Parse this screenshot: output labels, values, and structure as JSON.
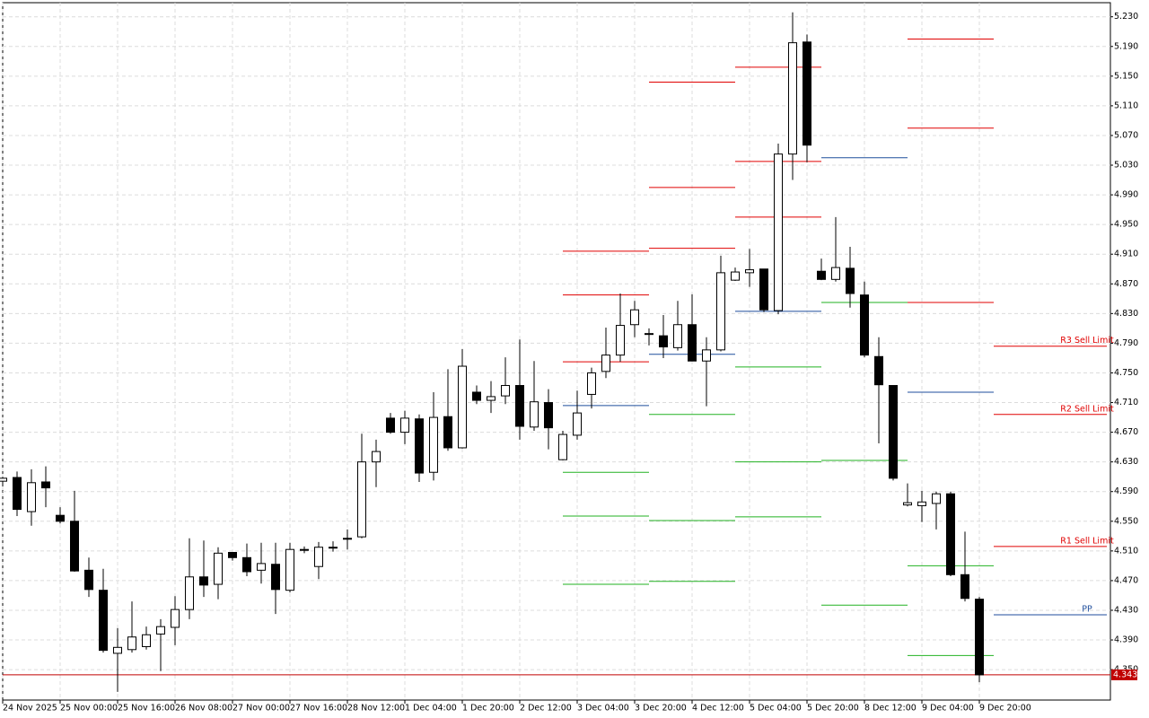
{
  "chart_data": {
    "type": "candlestick",
    "categories": [
      "24 Nov 2025",
      null,
      null,
      null,
      "25 Nov 00:00",
      null,
      null,
      null,
      "25 Nov 16:00",
      null,
      null,
      null,
      "26 Nov 08:00",
      null,
      null,
      null,
      "27 Nov 00:00",
      null,
      null,
      null,
      "27 Nov 16:00",
      null,
      null,
      null,
      "28 Nov 12:00",
      null,
      null,
      null,
      "1 Dec 04:00",
      null,
      null,
      null,
      "1 Dec 20:00",
      null,
      null,
      null,
      "2 Dec 12:00",
      null,
      null,
      null,
      "3 Dec 04:00",
      null,
      null,
      null,
      "3 Dec 20:00",
      null,
      null,
      null,
      "4 Dec 12:00",
      null,
      null,
      null,
      "5 Dec 04:00",
      null,
      null,
      null,
      "5 Dec 20:00",
      null,
      null,
      null,
      "8 Dec 12:00",
      null,
      null,
      null,
      "9 Dec 04:00",
      null,
      null,
      null,
      "9 Dec 20:00"
    ],
    "open": [
      4.604,
      4.609,
      4.563,
      4.603,
      4.558,
      4.55,
      4.484,
      4.457,
      4.372,
      4.377,
      4.381,
      4.398,
      4.407,
      4.431,
      4.475,
      4.465,
      4.508,
      4.501,
      4.484,
      4.492,
      4.457,
      4.511,
      4.489,
      4.514,
      4.526,
      4.529,
      4.63,
      4.689,
      4.67,
      4.688,
      4.616,
      4.691,
      4.649,
      4.724,
      4.713,
      4.719,
      4.733,
      4.677,
      4.71,
      4.633,
      4.666,
      4.721,
      4.752,
      4.774,
      4.815,
      4.802,
      4.8,
      4.784,
      4.815,
      4.766,
      4.781,
      4.875,
      4.885,
      4.89,
      4.834,
      5.045,
      5.196,
      4.887,
      4.876,
      4.891,
      4.855,
      4.772,
      4.733,
      4.572,
      4.571,
      4.574,
      4.587,
      4.478,
      4.445
    ],
    "high": [
      4.61,
      4.617,
      4.62,
      4.624,
      4.569,
      4.591,
      4.501,
      4.486,
      4.406,
      4.442,
      4.408,
      4.418,
      4.449,
      4.527,
      4.524,
      4.515,
      4.508,
      4.52,
      4.521,
      4.521,
      4.521,
      4.516,
      4.522,
      4.523,
      4.539,
      4.668,
      4.66,
      4.696,
      4.699,
      4.694,
      4.724,
      4.755,
      4.782,
      4.733,
      4.739,
      4.771,
      4.795,
      4.766,
      4.728,
      4.672,
      4.726,
      4.757,
      4.811,
      4.857,
      4.847,
      4.81,
      4.828,
      4.847,
      4.856,
      4.798,
      4.908,
      4.892,
      4.917,
      4.89,
      5.059,
      5.236,
      5.206,
      4.904,
      4.96,
      4.92,
      4.873,
      4.798,
      4.733,
      4.601,
      4.591,
      4.59,
      4.59,
      4.536,
      4.448
    ],
    "low": [
      4.6,
      4.557,
      4.544,
      4.569,
      4.547,
      4.482,
      4.448,
      4.373,
      4.32,
      4.373,
      4.377,
      4.348,
      4.383,
      4.418,
      4.448,
      4.445,
      4.497,
      4.476,
      4.466,
      4.425,
      4.454,
      4.507,
      4.472,
      4.509,
      4.512,
      4.527,
      4.596,
      4.668,
      4.654,
      4.603,
      4.605,
      4.645,
      4.648,
      4.708,
      4.696,
      4.708,
      4.66,
      4.672,
      4.647,
      4.632,
      4.66,
      4.702,
      4.743,
      4.765,
      4.798,
      4.787,
      4.77,
      4.78,
      4.766,
      4.705,
      4.779,
      4.874,
      4.866,
      4.832,
      4.829,
      5.01,
      5.034,
      4.875,
      4.873,
      4.838,
      4.771,
      4.655,
      4.605,
      4.57,
      4.549,
      4.539,
      4.476,
      4.442,
      4.333
    ],
    "close": [
      4.608,
      4.566,
      4.602,
      4.595,
      4.55,
      4.483,
      4.458,
      4.376,
      4.38,
      4.394,
      4.397,
      4.408,
      4.431,
      4.475,
      4.464,
      4.507,
      4.501,
      4.482,
      4.493,
      4.458,
      4.512,
      4.512,
      4.515,
      4.515,
      4.527,
      4.63,
      4.644,
      4.67,
      4.689,
      4.615,
      4.69,
      4.649,
      4.759,
      4.713,
      4.718,
      4.733,
      4.678,
      4.711,
      4.676,
      4.667,
      4.696,
      4.75,
      4.774,
      4.814,
      4.835,
      4.803,
      4.785,
      4.815,
      4.766,
      4.781,
      4.885,
      4.886,
      4.889,
      4.835,
      5.045,
      5.195,
      5.057,
      4.876,
      4.892,
      4.857,
      4.774,
      4.734,
      4.608,
      4.575,
      4.576,
      4.587,
      4.478,
      4.446,
      4.343
    ],
    "ylim": [
      4.309,
      5.249
    ],
    "yticks": [
      {
        "value": 5.23,
        "label": "5.230"
      },
      {
        "value": 5.19,
        "label": "5.190"
      },
      {
        "value": 5.15,
        "label": "5.150"
      },
      {
        "value": 5.11,
        "label": "5.110"
      },
      {
        "value": 5.07,
        "label": "5.070"
      },
      {
        "value": 5.03,
        "label": "5.030"
      },
      {
        "value": 4.99,
        "label": "4.990"
      },
      {
        "value": 4.95,
        "label": "4.950"
      },
      {
        "value": 4.91,
        "label": "4.910"
      },
      {
        "value": 4.87,
        "label": "4.870"
      },
      {
        "value": 4.83,
        "label": "4.830"
      },
      {
        "value": 4.79,
        "label": "4.790"
      },
      {
        "value": 4.75,
        "label": "4.750"
      },
      {
        "value": 4.71,
        "label": "4.710"
      },
      {
        "value": 4.67,
        "label": "4.670"
      },
      {
        "value": 4.63,
        "label": "4.630"
      },
      {
        "value": 4.59,
        "label": "4.590"
      },
      {
        "value": 4.55,
        "label": "4.550"
      },
      {
        "value": 4.51,
        "label": "4.510"
      },
      {
        "value": 4.47,
        "label": "4.470"
      },
      {
        "value": 4.43,
        "label": "4.430"
      },
      {
        "value": 4.39,
        "label": "4.390"
      },
      {
        "value": 4.35,
        "label": "4.350"
      }
    ],
    "grid": true,
    "last_price": 4.343,
    "last_price_color": "#c00000",
    "resistance_color": "#e00000",
    "pivot_color": "#1f4e9c",
    "support_color": "#22b222",
    "levels": [
      {
        "resistance": [
          4.914,
          4.855,
          4.765
        ],
        "pivot": 4.706,
        "support": [
          4.616,
          4.557,
          4.465
        ]
      },
      {
        "resistance": [
          5.142,
          5.0,
          4.918
        ],
        "pivot": 4.775,
        "support": [
          4.694,
          4.551,
          4.469
        ]
      },
      {
        "resistance": [
          5.162,
          5.035,
          4.96
        ],
        "pivot": 4.833,
        "support": [
          4.758,
          4.63,
          4.556
        ]
      },
      {
        "resistance": [],
        "pivot": 5.04,
        "support": [
          4.845,
          4.632,
          4.437
        ]
      },
      {
        "resistance": [
          5.2,
          5.08,
          4.845
        ],
        "pivot": 4.724,
        "support": [
          4.49,
          4.369
        ]
      }
    ],
    "order_levels": [
      {
        "name": "R3 Sell Limit",
        "value": 4.786,
        "color": "#e00000"
      },
      {
        "name": "R2 Sell Limit",
        "value": 4.694,
        "color": "#e00000"
      },
      {
        "name": "R1 Sell Limit",
        "value": 4.516,
        "color": "#e00000"
      },
      {
        "name": "PP",
        "value": 4.424,
        "color": "#1f4e9c"
      }
    ]
  }
}
